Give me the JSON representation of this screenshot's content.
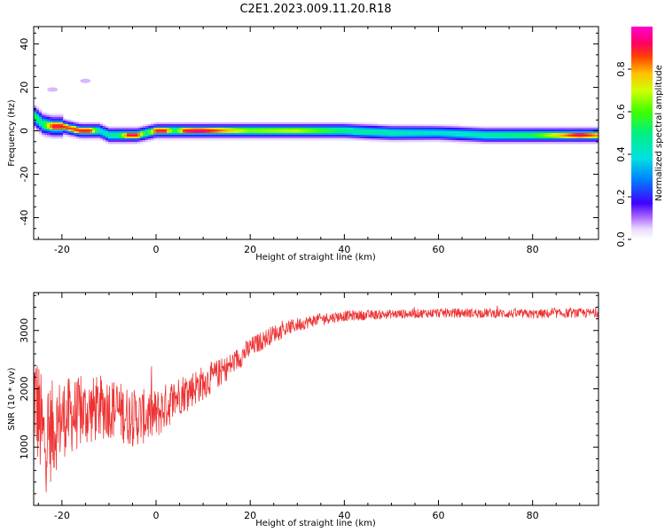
{
  "title": "C2E1.2023.009.11.20.R18",
  "chart_data": [
    {
      "type": "heatmap",
      "xlabel": "Height of straight line (km)",
      "ylabel": "Frequency (Hz)",
      "xlim": [
        -26,
        94
      ],
      "ylim": [
        -50,
        48
      ],
      "xticks": [
        -20,
        0,
        20,
        40,
        60,
        80
      ],
      "yticks": [
        -40,
        -20,
        0,
        20,
        40
      ],
      "colorbar": {
        "label": "Normalized spectral amplitude",
        "range": [
          0,
          1
        ],
        "ticks": [
          0.0,
          0.2,
          0.4,
          0.6,
          0.8
        ]
      },
      "ridge": {
        "x": [
          -26,
          -24,
          -22,
          -20,
          -18,
          -16,
          -14,
          -12,
          -10,
          -8,
          -6,
          -4,
          -2,
          0,
          2,
          4,
          6,
          8,
          10,
          15,
          20,
          30,
          40,
          50,
          60,
          70,
          80,
          90,
          94
        ],
        "freq": [
          7,
          3,
          2,
          2,
          1,
          0,
          0,
          0,
          -2,
          -2,
          -2,
          -2,
          -1,
          0,
          0,
          0,
          0,
          0,
          0,
          0,
          0,
          0,
          0,
          -1,
          -1,
          -2,
          -2,
          -2,
          -2
        ],
        "amp": [
          0.55,
          0.5,
          0.9,
          0.9,
          0.85,
          0.9,
          0.9,
          0.4,
          0.45,
          0.5,
          0.9,
          0.9,
          0.5,
          0.9,
          0.9,
          0.5,
          0.9,
          0.95,
          0.95,
          0.8,
          0.65,
          0.7,
          0.5,
          0.45,
          0.4,
          0.45,
          0.55,
          0.95,
          0.8
        ]
      },
      "spots": [
        {
          "x": -22,
          "freq": 19,
          "amp": 0.05
        },
        {
          "x": -15,
          "freq": 23,
          "amp": 0.03
        }
      ]
    },
    {
      "type": "line",
      "xlabel": "Height of straight line (km)",
      "ylabel": "SNR (10 * v/v)",
      "xlim": [
        -26,
        94
      ],
      "ylim": [
        0,
        3650
      ],
      "xticks": [
        -20,
        0,
        20,
        40,
        60,
        80
      ],
      "yticks": [
        1000,
        2000,
        3000
      ],
      "color": "#ee3333",
      "trend": {
        "x": [
          -26,
          -24,
          -20,
          -15,
          -10,
          -5,
          0,
          5,
          10,
          15,
          20,
          25,
          30,
          35,
          40,
          50,
          60,
          70,
          80,
          90,
          94
        ],
        "y": [
          2000,
          1100,
          1500,
          1600,
          1700,
          1500,
          1550,
          1900,
          2100,
          2350,
          2700,
          2950,
          3100,
          3200,
          3250,
          3280,
          3300,
          3300,
          3280,
          3300,
          3300
        ],
        "noise": [
          1000,
          1000,
          700,
          600,
          550,
          500,
          450,
          350,
          300,
          220,
          180,
          150,
          120,
          100,
          90,
          80,
          80,
          80,
          80,
          80,
          80
        ]
      }
    }
  ]
}
